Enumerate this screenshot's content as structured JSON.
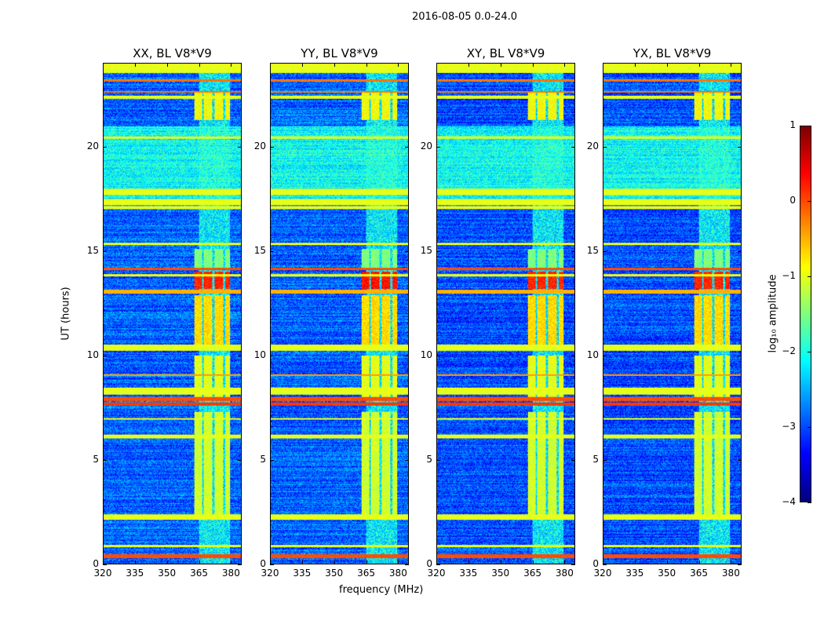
{
  "chart_data": {
    "type": "heatmap",
    "title": "2016-08-05 0.0-24.0",
    "xlabel": "frequency (MHz)",
    "ylabel": "UT (hours)",
    "xlim": [
      320,
      385
    ],
    "ylim": [
      0,
      24
    ],
    "xticks": [
      "320",
      "335",
      "350",
      "365",
      "380"
    ],
    "xtick_values": [
      320,
      335,
      350,
      365,
      380
    ],
    "yticks": [
      "0",
      "5",
      "10",
      "15",
      "20"
    ],
    "ytick_values": [
      0,
      5,
      10,
      15,
      20
    ],
    "panels": [
      {
        "title": "XX, BL V8*V9"
      },
      {
        "title": "YY, BL V8*V9"
      },
      {
        "title": "XY, BL V8*V9"
      },
      {
        "title": "YX, BL V8*V9"
      }
    ],
    "colorbar": {
      "label": "log₁₀ amplitude",
      "range": [
        -4,
        1
      ],
      "ticks": [
        "1",
        "0",
        "−1",
        "−2",
        "−3",
        "−4"
      ],
      "tick_values": [
        1,
        0,
        -1,
        -2,
        -3,
        -4
      ],
      "colormap": "jet"
    },
    "background_level": -2.9,
    "rfi_band_mhz": [
      363,
      380
    ],
    "rfi_gaps_mhz": [
      [
        366.5,
        367.5
      ],
      [
        371.5,
        372.5
      ],
      [
        376.5,
        377.5
      ]
    ],
    "rfi_blocks": [
      {
        "t": [
          2.3,
          7.3
        ],
        "v": -1.1
      },
      {
        "t": [
          8.0,
          10.0
        ],
        "v": -1.0
      },
      {
        "t": [
          10.5,
          12.9
        ],
        "v": -0.7
      },
      {
        "t": [
          13.2,
          14.0
        ],
        "v": 0.2
      },
      {
        "t": [
          14.2,
          15.1
        ],
        "v": -1.5
      },
      {
        "t": [
          21.3,
          22.6
        ],
        "v": -0.9
      }
    ],
    "horizontal_bands": [
      {
        "t": [
          0.25,
          0.45
        ],
        "v": 0.0
      },
      {
        "t": [
          0.8,
          0.9
        ],
        "v": -1
      },
      {
        "t": [
          2.1,
          2.35
        ],
        "v": -1
      },
      {
        "t": [
          6.0,
          6.2
        ],
        "v": -1
      },
      {
        "t": [
          6.9,
          7.0
        ],
        "v": -1
      },
      {
        "t": [
          7.6,
          7.75
        ],
        "v": 0.1
      },
      {
        "t": [
          7.8,
          8.0
        ],
        "v": 0.0
      },
      {
        "t": [
          8.1,
          8.45
        ],
        "v": -1
      },
      {
        "t": [
          9.0,
          9.1
        ],
        "v": -0.4
      },
      {
        "t": [
          10.2,
          10.5
        ],
        "v": -1
      },
      {
        "t": [
          12.95,
          13.15
        ],
        "v": -0.5
      },
      {
        "t": [
          13.8,
          13.9
        ],
        "v": -0.9
      },
      {
        "t": [
          14.1,
          14.2
        ],
        "v": 0.0
      },
      {
        "t": [
          15.3,
          15.4
        ],
        "v": -1
      },
      {
        "t": [
          17.0,
          17.15
        ],
        "v": -1
      },
      {
        "t": [
          17.2,
          17.5
        ],
        "v": -1
      },
      {
        "t": [
          17.7,
          18.0
        ],
        "v": -1
      },
      {
        "t": [
          20.4,
          20.5
        ],
        "v": -1
      },
      {
        "t": [
          22.3,
          22.45
        ],
        "v": -1
      },
      {
        "t": [
          22.6,
          22.7
        ],
        "v": -0.2
      },
      {
        "t": [
          23.15,
          23.25
        ],
        "v": -0.2
      },
      {
        "t": [
          23.55,
          24.0
        ],
        "v": -1
      }
    ],
    "elevated_band": {
      "t": [
        17.5,
        21.0
      ],
      "v": -2.1
    }
  }
}
